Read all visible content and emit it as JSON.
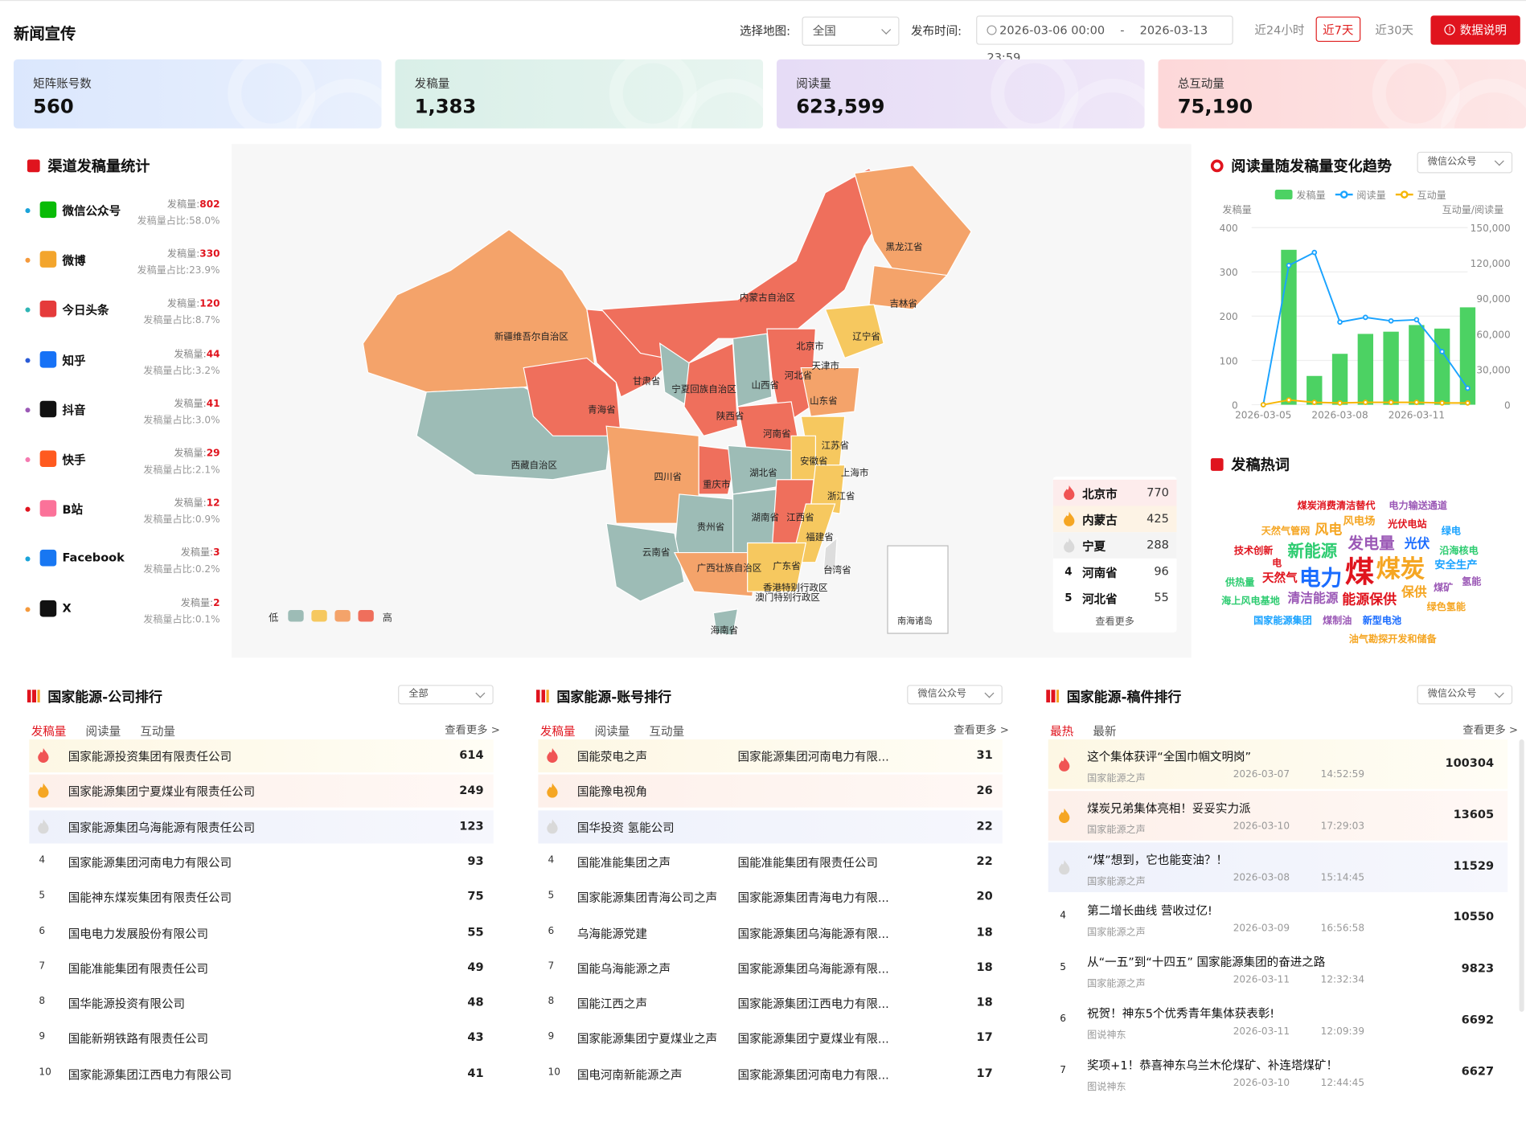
{
  "header": {
    "title": "新闻宣传",
    "map_label": "选择地图:",
    "map_value": "全国",
    "time_label": "发布时间:",
    "date_start": "2026-03-06 00:00",
    "date_sep": "-",
    "date_end": "2026-03-13 23:59",
    "quick": [
      "近24小时",
      "近7天",
      "近30天"
    ],
    "data_btn": "数据说明"
  },
  "cards": [
    {
      "label": "矩阵账号数",
      "value": "560"
    },
    {
      "label": "发稿量",
      "value": "1,383"
    },
    {
      "label": "阅读量",
      "value": "623,599"
    },
    {
      "label": "总互动量",
      "value": "75,190"
    }
  ],
  "channels": {
    "title": "渠道发稿量统计",
    "count_label": "发稿量:",
    "ratio_label": "发稿量占比:",
    "items": [
      {
        "name": "微信公众号",
        "count": "802",
        "ratio": "58.0%",
        "color": "#09bb07",
        "dot": "#1aa3d9"
      },
      {
        "name": "微博",
        "count": "330",
        "ratio": "23.9%",
        "color": "#f3a52c",
        "dot": "#f59a3c"
      },
      {
        "name": "今日头条",
        "count": "120",
        "ratio": "8.7%",
        "color": "#e53b3b",
        "dot": "#2fb5b5"
      },
      {
        "name": "知乎",
        "count": "44",
        "ratio": "3.2%",
        "color": "#1772f6",
        "dot": "#2a5bd7"
      },
      {
        "name": "抖音",
        "count": "41",
        "ratio": "3.0%",
        "color": "#111111",
        "dot": "#9b59b6"
      },
      {
        "name": "快手",
        "count": "29",
        "ratio": "2.1%",
        "color": "#ff5a1f",
        "dot": "#f57ab0"
      },
      {
        "name": "B站",
        "count": "12",
        "ratio": "0.9%",
        "color": "#fb7299",
        "dot": "#e0141e"
      },
      {
        "name": "Facebook",
        "count": "3",
        "ratio": "0.2%",
        "color": "#1877f2",
        "dot": "#1aa3d9"
      },
      {
        "name": "X",
        "count": "2",
        "ratio": "0.1%",
        "color": "#111111",
        "dot": "#f59a3c"
      }
    ]
  },
  "map": {
    "legend_low": "低",
    "legend_high": "高",
    "legend_colors": [
      "#9dbcb6",
      "#f6c85f",
      "#f4a36a",
      "#ef6f5c"
    ],
    "inset": "南海诸岛",
    "labels": [
      "黑龙江省",
      "吉林省",
      "辽宁省",
      "内蒙古自治区",
      "北京市",
      "天津市",
      "河北省",
      "山东省",
      "山西省",
      "新疆维吾尔自治区",
      "甘肃省",
      "宁夏回族自治区",
      "青海省",
      "陕西省",
      "河南省",
      "江苏省",
      "安徽省",
      "上海市",
      "西藏自治区",
      "四川省",
      "重庆市",
      "湖北省",
      "浙江省",
      "湖南省",
      "江西省",
      "贵州省",
      "福建省",
      "云南省",
      "广西壮族自治区",
      "广东省",
      "台湾省",
      "香港特别行政区",
      "澳门特别行政区",
      "海南省"
    ],
    "ranking": [
      {
        "rank": "1",
        "name": "北京市",
        "value": "770"
      },
      {
        "rank": "2",
        "name": "内蒙古",
        "value": "425"
      },
      {
        "rank": "3",
        "name": "宁夏",
        "value": "288"
      },
      {
        "rank": "4",
        "name": "河南省",
        "value": "96"
      },
      {
        "rank": "5",
        "name": "河北省",
        "value": "55"
      }
    ],
    "more": "查看更多"
  },
  "trend": {
    "title": "阅读量随发稿量变化趋势",
    "select": "微信公众号",
    "y_left_label": "发稿量",
    "y_right_label": "互动量/阅读量"
  },
  "chart_data": {
    "type": "bar",
    "legend": [
      "发稿量",
      "阅读量",
      "互动量"
    ],
    "categories": [
      "2026-03-05",
      "2026-03-06",
      "2026-03-07",
      "2026-03-08",
      "2026-03-09",
      "2026-03-10",
      "2026-03-11",
      "2026-03-12",
      "2026-03-13"
    ],
    "x_tick_labels": [
      "2026-03-05",
      "2026-03-08",
      "2026-03-11"
    ],
    "series": [
      {
        "name": "发稿量",
        "type": "bar",
        "axis": "left",
        "color": "#4cd263",
        "values": [
          0,
          350,
          65,
          115,
          160,
          165,
          180,
          172,
          220
        ]
      },
      {
        "name": "阅读量",
        "type": "line",
        "axis": "right",
        "color": "#1aa3ff",
        "values": [
          0,
          118000,
          129000,
          70000,
          74000,
          71000,
          72000,
          45000,
          14000
        ]
      },
      {
        "name": "互动量",
        "type": "line",
        "axis": "right",
        "color": "#f7b500",
        "values": [
          0,
          4000,
          2000,
          1500,
          2000,
          2000,
          2000,
          1500,
          1500
        ]
      }
    ],
    "ylim_left": [
      0,
      400
    ],
    "yticks_left": [
      "0",
      "100",
      "200",
      "300",
      "400"
    ],
    "ylim_right": [
      0,
      150000
    ],
    "yticks_right": [
      "0",
      "30,000",
      "60,000",
      "90,000",
      "120,000",
      "150,000"
    ]
  },
  "hotwords": {
    "title": "发稿热词",
    "words": [
      {
        "t": "煤炭消费清洁替代",
        "c": "#e0141e",
        "x": 1333,
        "y": 511,
        "s": 10
      },
      {
        "t": "电力输送通道",
        "c": "#9b59b6",
        "x": 1427,
        "y": 511,
        "s": 10
      },
      {
        "t": "风电场",
        "c": "#f5a623",
        "x": 1380,
        "y": 527,
        "s": 11
      },
      {
        "t": "光伏电站",
        "c": "#e0141e",
        "x": 1426,
        "y": 530,
        "s": 10
      },
      {
        "t": "天然气管网",
        "c": "#f5a623",
        "x": 1296,
        "y": 537,
        "s": 10
      },
      {
        "t": "风电",
        "c": "#f5a623",
        "x": 1351,
        "y": 534,
        "s": 14
      },
      {
        "t": "绿电",
        "c": "#1aa3ff",
        "x": 1481,
        "y": 537,
        "s": 10
      },
      {
        "t": "新能源",
        "c": "#2ecc71",
        "x": 1323,
        "y": 552,
        "s": 17
      },
      {
        "t": "发电量",
        "c": "#9b59b6",
        "x": 1385,
        "y": 545,
        "s": 16
      },
      {
        "t": "光伏",
        "c": "#1a6cff",
        "x": 1443,
        "y": 548,
        "s": 13
      },
      {
        "t": "技术创新",
        "c": "#e0141e",
        "x": 1268,
        "y": 557,
        "s": 10
      },
      {
        "t": "沿海核电",
        "c": "#2ecc71",
        "x": 1479,
        "y": 557,
        "s": 10
      },
      {
        "t": "电",
        "c": "#e0141e",
        "x": 1307,
        "y": 570,
        "s": 10
      },
      {
        "t": "煤",
        "c": "#e0141e",
        "x": 1382,
        "y": 563,
        "s": 30
      },
      {
        "t": "煤炭",
        "c": "#f5a623",
        "x": 1414,
        "y": 565,
        "s": 25
      },
      {
        "t": "安全生产",
        "c": "#1aa3ff",
        "x": 1474,
        "y": 572,
        "s": 11
      },
      {
        "t": "天然气",
        "c": "#e0141e",
        "x": 1297,
        "y": 585,
        "s": 12
      },
      {
        "t": "电力",
        "c": "#1a6cff",
        "x": 1335,
        "y": 577,
        "s": 22
      },
      {
        "t": "供热量",
        "c": "#2ecc71",
        "x": 1259,
        "y": 590,
        "s": 10
      },
      {
        "t": "氢能",
        "c": "#9b59b6",
        "x": 1502,
        "y": 589,
        "s": 10
      },
      {
        "t": "煤矿",
        "c": "#9b59b6",
        "x": 1473,
        "y": 595,
        "s": 10
      },
      {
        "t": "保供",
        "c": "#f5a623",
        "x": 1440,
        "y": 598,
        "s": 13
      },
      {
        "t": "海上风电基地",
        "c": "#2ecc71",
        "x": 1255,
        "y": 609,
        "s": 10
      },
      {
        "t": "清洁能源",
        "c": "#9b59b6",
        "x": 1323,
        "y": 604,
        "s": 13
      },
      {
        "t": "能源保供",
        "c": "#e0141e",
        "x": 1379,
        "y": 606,
        "s": 14
      },
      {
        "t": "绿色氢能",
        "c": "#f5a623",
        "x": 1466,
        "y": 615,
        "s": 10
      },
      {
        "t": "国家能源集团",
        "c": "#1aa3ff",
        "x": 1288,
        "y": 629,
        "s": 10
      },
      {
        "t": "煤制油",
        "c": "#9b59b6",
        "x": 1359,
        "y": 629,
        "s": 10
      },
      {
        "t": "新型电池",
        "c": "#1a6cff",
        "x": 1400,
        "y": 629,
        "s": 10
      },
      {
        "t": "油气勘探开发和储备",
        "c": "#f5a623",
        "x": 1386,
        "y": 648,
        "s": 10
      }
    ]
  },
  "company": {
    "title": "国家能源-公司排行",
    "select": "全部",
    "tabs": [
      "发稿量",
      "阅读量",
      "互动量"
    ],
    "more": "查看更多 >",
    "rows": [
      {
        "n": "1",
        "name": "国家能源投资集团有限责任公司",
        "v": "614"
      },
      {
        "n": "2",
        "name": "国家能源集团宁夏煤业有限责任公司",
        "v": "249"
      },
      {
        "n": "3",
        "name": "国家能源集团乌海能源有限责任公司",
        "v": "123"
      },
      {
        "n": "4",
        "name": "国家能源集团河南电力有限公司",
        "v": "93"
      },
      {
        "n": "5",
        "name": "国能神东煤炭集团有限责任公司",
        "v": "75"
      },
      {
        "n": "6",
        "name": "国电电力发展股份有限公司",
        "v": "55"
      },
      {
        "n": "7",
        "name": "国能准能集团有限责任公司",
        "v": "49"
      },
      {
        "n": "8",
        "name": "国华能源投资有限公司",
        "v": "48"
      },
      {
        "n": "9",
        "name": "国能新朔铁路有限责任公司",
        "v": "43"
      },
      {
        "n": "10",
        "name": "国家能源集团江西电力有限公司",
        "v": "41"
      }
    ]
  },
  "account": {
    "title": "国家能源-账号排行",
    "select": "微信公众号",
    "tabs": [
      "发稿量",
      "阅读量",
      "互动量"
    ],
    "more": "查看更多 >",
    "rows": [
      {
        "n": "1",
        "name": "国能荥电之声",
        "org": "国家能源集团河南电力有限...",
        "v": "31"
      },
      {
        "n": "2",
        "name": "国能豫电视角",
        "org": "",
        "v": "26"
      },
      {
        "n": "3",
        "name": "国华投资 氢能公司",
        "org": "",
        "v": "22"
      },
      {
        "n": "4",
        "name": "国能准能集团之声",
        "org": "国能准能集团有限责任公司",
        "v": "22"
      },
      {
        "n": "5",
        "name": "国家能源集团青海公司之声",
        "org": "国家能源集团青海电力有限...",
        "v": "20"
      },
      {
        "n": "6",
        "name": "乌海能源党建",
        "org": "国家能源集团乌海能源有限...",
        "v": "18"
      },
      {
        "n": "7",
        "name": "国能乌海能源之声",
        "org": "国家能源集团乌海能源有限...",
        "v": "18"
      },
      {
        "n": "8",
        "name": "国能江西之声",
        "org": "国家能源集团江西电力有限...",
        "v": "18"
      },
      {
        "n": "9",
        "name": "国家能源集团宁夏煤业之声",
        "org": "国家能源集团宁夏煤业有限...",
        "v": "17"
      },
      {
        "n": "10",
        "name": "国电河南新能源之声",
        "org": "国家能源集团河南电力有限...",
        "v": "17"
      }
    ]
  },
  "articles": {
    "title": "国家能源-稿件排行",
    "select": "微信公众号",
    "tabs": [
      "最热",
      "最新"
    ],
    "more": "查看更多 >",
    "rows": [
      {
        "n": "1",
        "title": "这个集体获评“全国巾帼文明岗”",
        "src": "国家能源之声",
        "date": "2026-03-07",
        "time": "14:52:59",
        "v": "100304"
      },
      {
        "n": "2",
        "title": "煤炭兄弟集体亮相！妥妥实力派",
        "src": "国家能源之声",
        "date": "2026-03-10",
        "time": "17:29:03",
        "v": "13605"
      },
      {
        "n": "3",
        "title": "“煤”想到，它也能变油？！",
        "src": "国家能源之声",
        "date": "2026-03-08",
        "time": "15:14:45",
        "v": "11529"
      },
      {
        "n": "4",
        "title": "第二增长曲线 营收过亿!",
        "src": "国家能源之声",
        "date": "2026-03-09",
        "time": "16:56:58",
        "v": "10550"
      },
      {
        "n": "5",
        "title": "从“一五”到“十四五” 国家能源集团的奋进之路",
        "src": "国家能源之声",
        "date": "2026-03-11",
        "time": "12:32:34",
        "v": "9823"
      },
      {
        "n": "6",
        "title": "祝贺！神东5个优秀青年集体获表彰!",
        "src": "图说神东",
        "date": "2026-03-11",
        "time": "12:09:39",
        "v": "6692"
      },
      {
        "n": "7",
        "title": "奖项+1！恭喜神东乌兰木伦煤矿、补连塔煤矿！",
        "src": "图说神东",
        "date": "2026-03-10",
        "time": "12:44:45",
        "v": "6627"
      }
    ]
  }
}
